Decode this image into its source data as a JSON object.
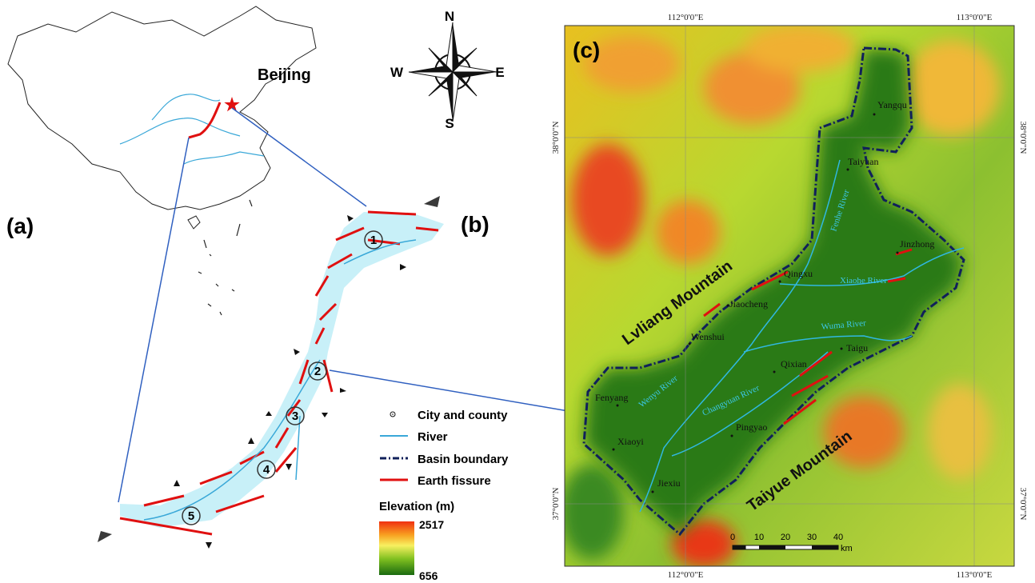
{
  "panels": {
    "a": "(a)",
    "b": "(b)",
    "c": "(c)"
  },
  "compass": {
    "north": "N",
    "south": "S",
    "east": "E",
    "west": "W"
  },
  "capital": "Beijing",
  "zones": [
    "1",
    "2",
    "3",
    "4",
    "5"
  ],
  "legend": {
    "items": [
      "City and county",
      "River",
      "Basin boundary",
      "Earth fissure"
    ],
    "elevation_title": "Elevation (m)",
    "elevation_max": 2517,
    "elevation_min": 656
  },
  "map": {
    "longitude_labels": [
      "112°0'0\"E",
      "113°0'0\"E"
    ],
    "latitude_labels": [
      "38°0'0\"N",
      "37°0'0\"N"
    ],
    "cities": [
      "Yangqu",
      "Taiyuan",
      "Jinzhong",
      "Qingxu",
      "Jiaocheng",
      "Wenshui",
      "Taigu",
      "Qixian",
      "Fenyang",
      "Xiaoyi",
      "Pingyao",
      "Jiexiu"
    ],
    "rivers": [
      "Fenhe River",
      "Xiaohe River",
      "Wuma River",
      "Wenyu River",
      "Changyuan River"
    ],
    "mountains": [
      "Lvliang Mountain",
      "Taiyue Mountain"
    ],
    "scale": {
      "ticks": [
        0,
        10,
        20,
        30,
        40
      ],
      "unit": "km"
    }
  }
}
